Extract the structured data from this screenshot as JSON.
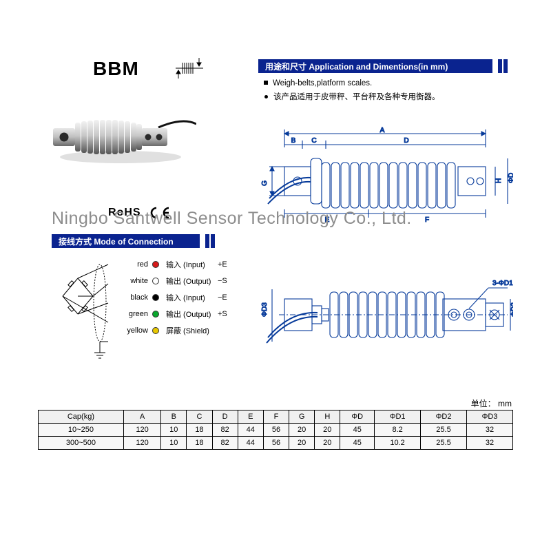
{
  "model": "BBM",
  "banner_app": "用途和尺寸 Application and Dimentions(in mm)",
  "bullets": {
    "en": "Weigh-belts,platform scales.",
    "cn": "该产品适用于皮带秤、平台秤及各种专用衡器。"
  },
  "rohs": "RoHS",
  "banner_conn": "接线方式 Mode of Connection",
  "wiring": {
    "rows": [
      {
        "color_name": "red",
        "dot": "#d61a1a",
        "io": "输入 (Input)",
        "sig": "+E"
      },
      {
        "color_name": "white",
        "dot": "#ffffff",
        "io": "输出 (Output)",
        "sig": "−S"
      },
      {
        "color_name": "black",
        "dot": "#000000",
        "io": "输入 (Input)",
        "sig": "−E"
      },
      {
        "color_name": "green",
        "dot": "#0aa82e",
        "io": "输出 (Output)",
        "sig": "+S"
      },
      {
        "color_name": "yellow",
        "dot": "#e8c800",
        "io": "屏蔽 (Shield)",
        "sig": ""
      }
    ]
  },
  "watermark": "Ningbo Santwell Sensor Technology Co., Ltd.",
  "unit_label": "单位：  mm",
  "dim_labels": [
    "A",
    "B",
    "C",
    "D",
    "E",
    "F",
    "G",
    "H",
    "D1",
    "D2",
    "D3"
  ],
  "dim_label_3d1": "3-ΦD1",
  "table": {
    "headers": [
      "Cap(kg)",
      "A",
      "B",
      "C",
      "D",
      "E",
      "F",
      "G",
      "H",
      "ΦD",
      "ΦD1",
      "ΦD2",
      "ΦD3"
    ],
    "rows": [
      [
        "10~250",
        "120",
        "10",
        "18",
        "82",
        "44",
        "56",
        "20",
        "20",
        "45",
        "8.2",
        "25.5",
        "32"
      ],
      [
        "300~500",
        "120",
        "10",
        "18",
        "82",
        "44",
        "56",
        "20",
        "20",
        "45",
        "10.2",
        "25.5",
        "32"
      ]
    ]
  },
  "colors": {
    "banner_bg": "#0a238f",
    "banner_text": "#ffffff",
    "diagram_line": "#063a9a",
    "table_bg": "#f7f7f7",
    "watermark": "#8d8d8d"
  }
}
